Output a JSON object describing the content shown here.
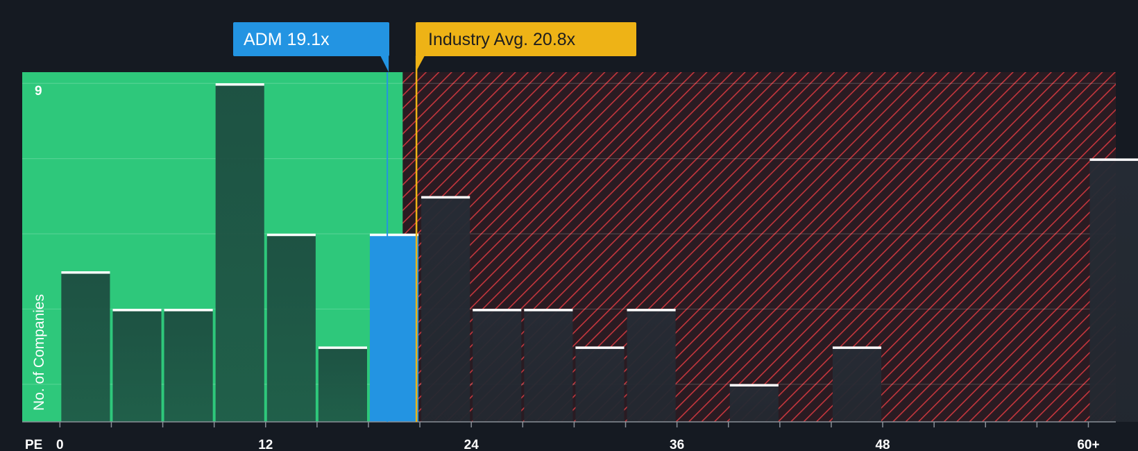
{
  "chart_data": {
    "type": "bar",
    "title": "",
    "xlabel": "PE",
    "ylabel": "No. of Companies",
    "x_ticks": [
      "0",
      "12",
      "24",
      "36",
      "48",
      "60+"
    ],
    "x_tick_values": [
      0,
      12,
      24,
      36,
      48,
      60
    ],
    "y_tick_label": "9",
    "y_tick_value": 9,
    "xlim": [
      -2.2,
      61.6
    ],
    "ylim": [
      0,
      9.3
    ],
    "bin_width": 3,
    "bins": [
      {
        "start": 0,
        "count": 4
      },
      {
        "start": 3,
        "count": 3
      },
      {
        "start": 6,
        "count": 3
      },
      {
        "start": 9,
        "count": 9
      },
      {
        "start": 12,
        "count": 5
      },
      {
        "start": 15,
        "count": 2
      },
      {
        "start": 18,
        "count": 5,
        "highlight": true
      },
      {
        "start": 21,
        "count": 6
      },
      {
        "start": 24,
        "count": 3
      },
      {
        "start": 27,
        "count": 3
      },
      {
        "start": 30,
        "count": 2
      },
      {
        "start": 33,
        "count": 3
      },
      {
        "start": 36,
        "count": 0
      },
      {
        "start": 39,
        "count": 1
      },
      {
        "start": 42,
        "count": 0
      },
      {
        "start": 45,
        "count": 2
      },
      {
        "start": 48,
        "count": 0
      },
      {
        "start": 51,
        "count": 0
      },
      {
        "start": 54,
        "count": 0
      },
      {
        "start": 57,
        "count": 0
      },
      {
        "start": 60,
        "count": 7
      }
    ],
    "company": {
      "label": "ADM 19.1x",
      "value": 19.1
    },
    "industry_avg": {
      "label": "Industry Avg. 20.8x",
      "value": 20.8
    },
    "fair_zone_end": 20.0
  },
  "colors": {
    "background": "#151a22",
    "fair_zone": "#2ec87b",
    "bar_in_zone": "#1f4a3e",
    "bar_overvalued": "#242a33",
    "highlight_bar": "#2394e2",
    "company_callout": "#2394e2",
    "industry_callout": "#eeb316",
    "hatch": "#c6363d",
    "hatch_bg": "#2a1b22",
    "bar_cap": "#ffffff"
  }
}
